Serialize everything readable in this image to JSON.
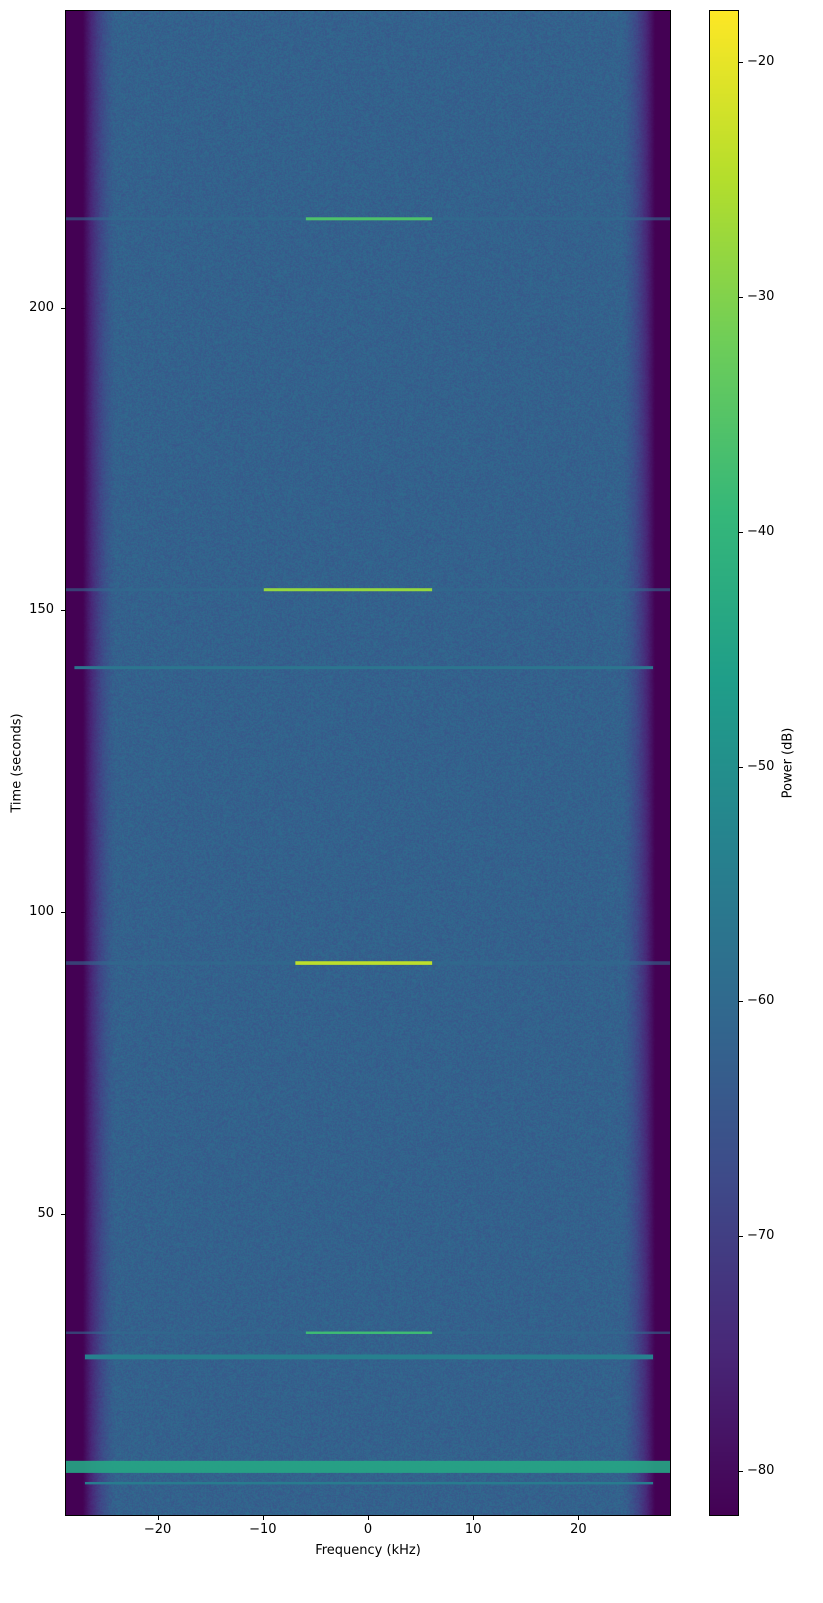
{
  "chart_data": {
    "type": "heatmap",
    "title": "",
    "xlabel": "Frequency (kHz)",
    "ylabel": "Time (seconds)",
    "colorbar_label": "Power (dB)",
    "colormap": "viridis",
    "xlim": [
      -28.8,
      28.8
    ],
    "ylim": [
      0,
      249.3
    ],
    "clim": [
      -81.9,
      -17.8
    ],
    "xticks": [
      -20,
      -10,
      0,
      10,
      20
    ],
    "xtick_labels": [
      "−20",
      "−10",
      "0",
      "10",
      "20"
    ],
    "yticks": [
      50,
      100,
      150,
      200
    ],
    "ytick_labels": [
      "50",
      "100",
      "150",
      "200"
    ],
    "cticks": [
      -20,
      -30,
      -40,
      -50,
      -60,
      -70,
      -80
    ],
    "ctick_labels": [
      "−20",
      "−30",
      "−40",
      "−50",
      "−60",
      "−70",
      "−80"
    ],
    "background": {
      "noise_floor_db": -62,
      "passband_khz": [
        -24,
        24
      ],
      "edge_db": -82
    },
    "events": [
      {
        "time": 214.9,
        "fmin": -6,
        "fmax": 6,
        "power_db": -36,
        "wide_power_db": -60,
        "duration": 0.5
      },
      {
        "time": 153.5,
        "fmin": -10,
        "fmax": 6,
        "power_db": -28,
        "wide_power_db": -60,
        "duration": 0.5
      },
      {
        "time": 140.6,
        "fmin": -28,
        "fmax": 27,
        "power_db": -57,
        "wide_power_db": -57,
        "duration": 0.5
      },
      {
        "time": 91.7,
        "fmin": -7,
        "fmax": 6,
        "power_db": -24,
        "wide_power_db": -60,
        "duration": 0.6
      },
      {
        "time": 30.5,
        "fmin": -6,
        "fmax": 6,
        "power_db": -38,
        "wide_power_db": -60,
        "duration": 0.4
      },
      {
        "time": 26.5,
        "fmin": -27,
        "fmax": 27,
        "power_db": -54,
        "wide_power_db": -54,
        "duration": 0.8
      },
      {
        "time": 8.3,
        "fmin": -28.8,
        "fmax": 28.8,
        "power_db": -44,
        "wide_power_db": -44,
        "duration": 2.0
      },
      {
        "time": 5.6,
        "fmin": -27,
        "fmax": 27,
        "power_db": -55,
        "wide_power_db": -55,
        "duration": 0.4
      }
    ]
  }
}
